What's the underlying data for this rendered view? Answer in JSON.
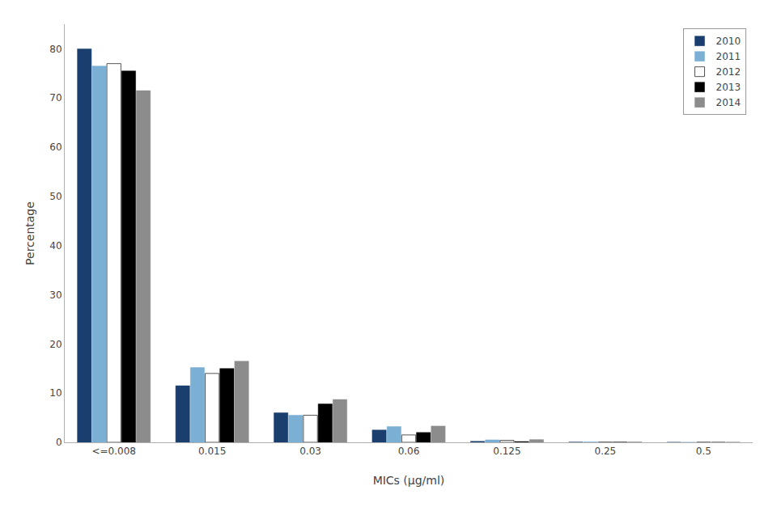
{
  "chart_data": {
    "type": "bar",
    "categories": [
      "<=0.008",
      "0.015",
      "0.03",
      "0.06",
      "0.125",
      "0.25",
      "0.5"
    ],
    "series": [
      {
        "name": "2010",
        "color": "#1a3f6f",
        "values": [
          80.0,
          11.5,
          6.0,
          2.5,
          0.2,
          0.03,
          0.0
        ]
      },
      {
        "name": "2011",
        "color": "#7bafd4",
        "values": [
          76.5,
          15.2,
          5.5,
          3.2,
          0.5,
          0.08,
          0.0
        ]
      },
      {
        "name": "2012",
        "color": "#ffffff",
        "values": [
          77.0,
          14.0,
          5.5,
          1.5,
          0.4,
          0.03,
          0.0
        ]
      },
      {
        "name": "2013",
        "color": "#000000",
        "values": [
          75.5,
          15.0,
          7.8,
          2.0,
          0.15,
          0.03,
          0.0
        ]
      },
      {
        "name": "2014",
        "color": "#8c8c8c",
        "values": [
          71.5,
          16.5,
          8.7,
          3.3,
          0.55,
          0.08,
          0.03
        ]
      }
    ],
    "xlabel": "MICs (μg/ml)",
    "ylabel": "Percentage",
    "ylim": [
      0,
      85
    ],
    "yticks": [
      0,
      10,
      20,
      30,
      40,
      50,
      60,
      70,
      80
    ],
    "grid": false,
    "legend": "upper right"
  }
}
